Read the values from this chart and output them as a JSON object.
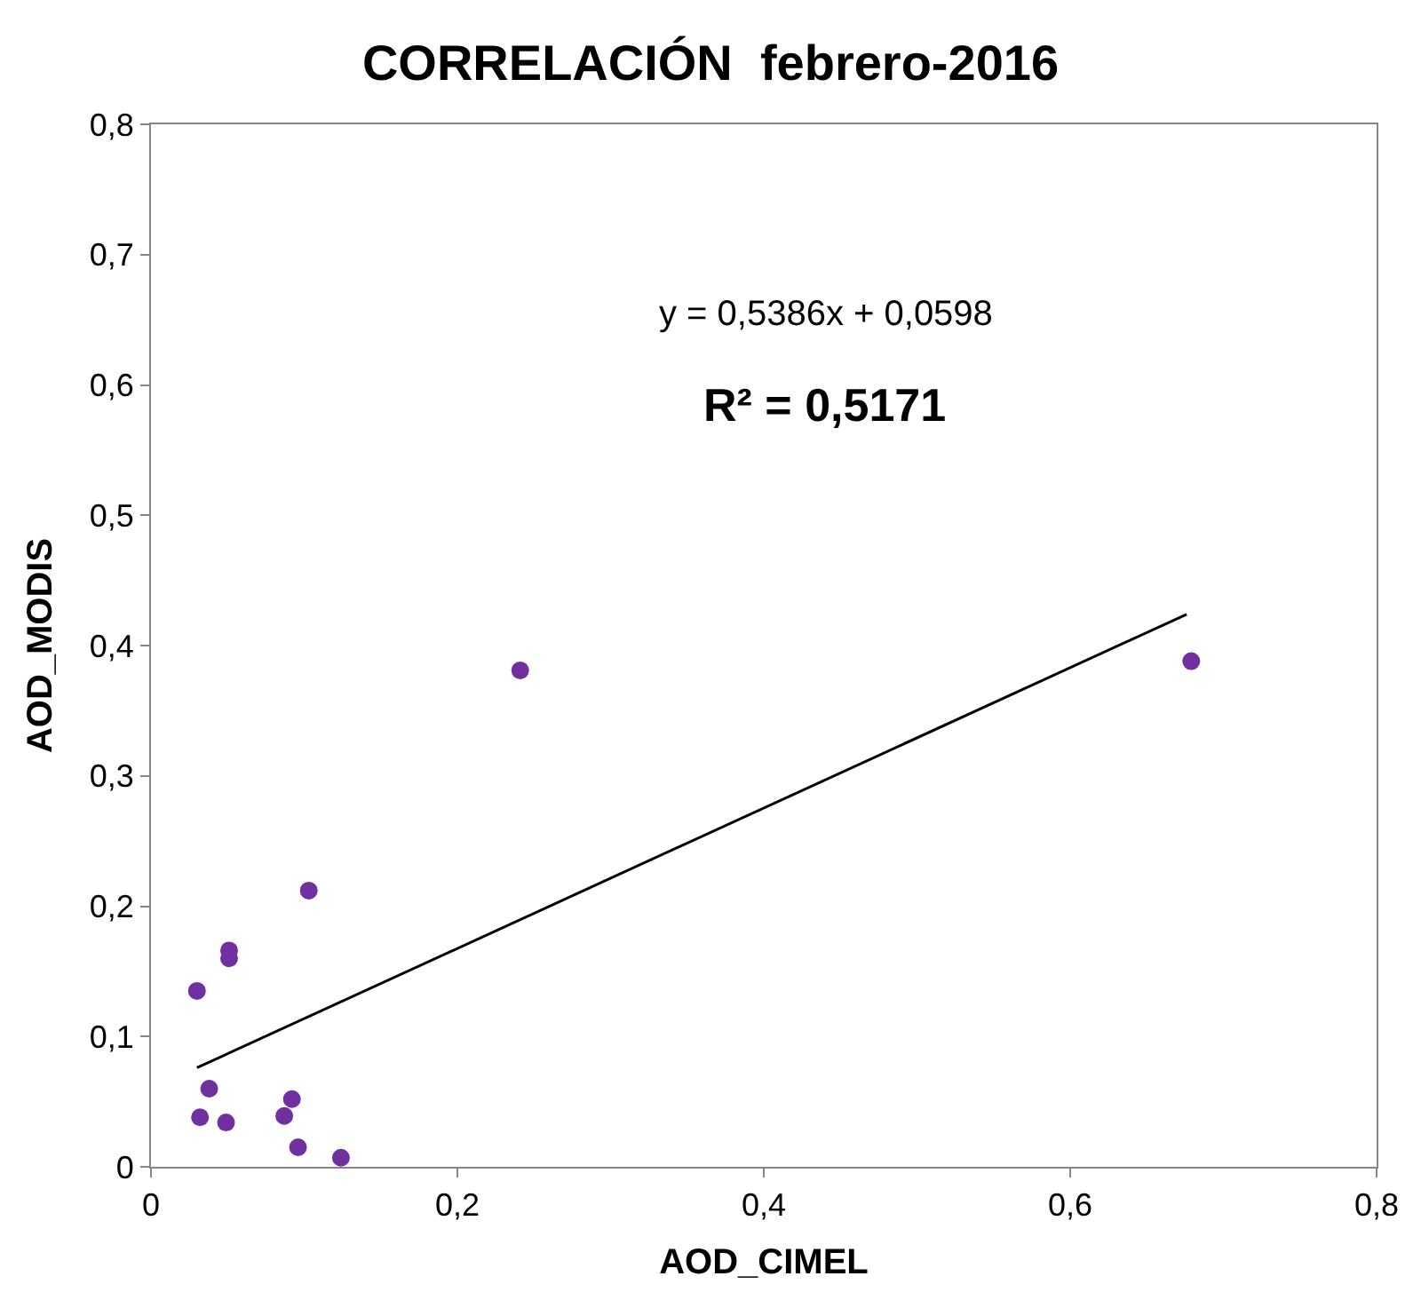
{
  "chart_data": {
    "type": "scatter",
    "title": "CORRELACIÓN  febrero-2016",
    "xlabel": "AOD_CIMEL",
    "ylabel": "AOD_MODIS",
    "series": [
      {
        "color": "#7030a0",
        "marker": "circle",
        "x": [
          0.03,
          0.038,
          0.032,
          0.049,
          0.051,
          0.051,
          0.087,
          0.092,
          0.096,
          0.103,
          0.124,
          0.241,
          0.679
        ],
        "values": [
          0.135,
          0.06,
          0.038,
          0.034,
          0.166,
          0.16,
          0.039,
          0.052,
          0.015,
          0.212,
          0.007,
          0.381,
          0.388
        ]
      },
      {
        "type": "line",
        "color": "#000000",
        "marker": "none",
        "line_style": "solid",
        "x": [
          0.03,
          0.676
        ],
        "values": [
          0.076,
          0.424
        ]
      }
    ],
    "annotations": [
      "y = 0,5386x + 0,0598",
      "R² = 0,5171"
    ],
    "xlim": [
      0,
      0.8
    ],
    "ylim": [
      0,
      0.8
    ],
    "xticks": [
      0,
      {
        "value": 0.2,
        "label": "0,2"
      },
      {
        "value": 0.4,
        "label": "0,4"
      },
      {
        "value": 0.6,
        "label": "0,6"
      },
      {
        "value": 0.8,
        "label": "0,8"
      }
    ],
    "yticks": [
      0,
      {
        "value": 0.1,
        "label": "0,1"
      },
      {
        "value": 0.2,
        "label": "0,2"
      },
      {
        "value": 0.3,
        "label": "0,3"
      },
      {
        "value": 0.4,
        "label": "0,4"
      },
      {
        "value": 0.5,
        "label": "0,5"
      },
      {
        "value": 0.6,
        "label": "0,6"
      },
      {
        "value": 0.7,
        "label": "0,7"
      },
      {
        "value": 0.8,
        "label": "0,8"
      }
    ],
    "legend": false
  }
}
